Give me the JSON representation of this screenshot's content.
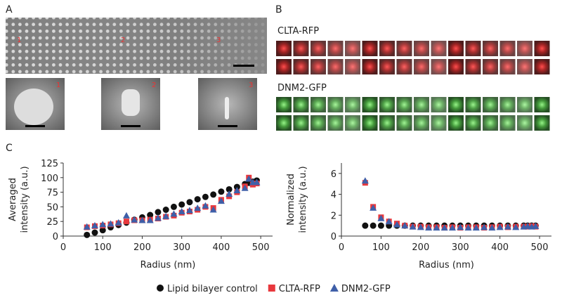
{
  "panels": {
    "a": {
      "label": "A",
      "markers": [
        "1",
        "2",
        "3"
      ],
      "inset_labels": [
        "1",
        "2",
        "3"
      ]
    },
    "b": {
      "label": "B",
      "rows": [
        "CLTA-RFP",
        "DNM2-GFP"
      ]
    },
    "c": {
      "label": "C"
    }
  },
  "chart_data": [
    {
      "type": "scatter",
      "x": [
        60,
        80,
        100,
        120,
        140,
        160,
        180,
        200,
        220,
        240,
        260,
        280,
        300,
        320,
        340,
        360,
        380,
        400,
        420,
        440,
        460,
        470,
        480,
        490
      ],
      "series": [
        {
          "name": "Lipid bilayer control",
          "color": "#111111",
          "marker": "circle",
          "values": [
            2,
            6,
            10,
            15,
            19,
            23,
            28,
            32,
            36,
            41,
            45,
            50,
            54,
            58,
            63,
            67,
            71,
            76,
            80,
            84,
            89,
            91,
            93,
            95
          ]
        },
        {
          "name": "CLTA-RFP",
          "color": "#e8383d",
          "marker": "square",
          "values": [
            15,
            17,
            18,
            20,
            22,
            25,
            27,
            27,
            28,
            30,
            33,
            35,
            40,
            42,
            45,
            50,
            48,
            62,
            68,
            75,
            85,
            100,
            88,
            90
          ]
        },
        {
          "name": "DNM2-GFP",
          "color": "#3f5fa8",
          "marker": "triangle",
          "values": [
            16,
            18,
            20,
            21,
            23,
            35,
            28,
            27,
            27,
            31,
            34,
            38,
            42,
            44,
            48,
            52,
            45,
            60,
            72,
            78,
            82,
            98,
            92,
            92
          ]
        }
      ],
      "xlim": [
        0,
        530
      ],
      "ylim": [
        0,
        125
      ],
      "xticks": [
        0,
        100,
        200,
        300,
        400,
        500
      ],
      "yticks": [
        0,
        25,
        50,
        75,
        100,
        125
      ],
      "xlabel": "Radius (nm)",
      "ylabel": [
        "Averaged",
        "intensity (a.u.)"
      ]
    },
    {
      "type": "scatter",
      "x": [
        60,
        80,
        100,
        120,
        140,
        160,
        180,
        200,
        220,
        240,
        260,
        280,
        300,
        320,
        340,
        360,
        380,
        400,
        420,
        440,
        460,
        470,
        480,
        490
      ],
      "series": [
        {
          "color": "#111111",
          "marker": "circle",
          "values": [
            1,
            1,
            1,
            1,
            1,
            1,
            1,
            1,
            1,
            1,
            1,
            1,
            1,
            1,
            1,
            1,
            1,
            1,
            1,
            1,
            1,
            1,
            1,
            1
          ]
        },
        {
          "color": "#e8383d",
          "marker": "square",
          "values": [
            5.1,
            2.8,
            1.8,
            1.4,
            1.2,
            1.0,
            0.9,
            0.9,
            0.85,
            0.85,
            0.8,
            0.85,
            0.8,
            0.85,
            0.85,
            0.8,
            0.85,
            0.9,
            0.85,
            0.9,
            0.9,
            0.9,
            0.95,
            0.9
          ]
        },
        {
          "color": "#3f5fa8",
          "marker": "triangle",
          "values": [
            5.3,
            2.7,
            1.7,
            1.4,
            1.1,
            1.0,
            0.9,
            0.85,
            0.8,
            0.8,
            0.8,
            0.8,
            0.85,
            0.8,
            0.8,
            0.85,
            0.8,
            0.85,
            0.9,
            0.85,
            0.9,
            0.95,
            0.9,
            0.95
          ]
        }
      ],
      "xlim": [
        0,
        530
      ],
      "ylim": [
        0,
        7
      ],
      "xticks": [
        0,
        100,
        200,
        300,
        400,
        500
      ],
      "yticks": [
        0,
        2,
        4,
        6
      ],
      "xlabel": "Radius (nm)",
      "ylabel": [
        "Normalized",
        "intensity (a.u.)"
      ]
    }
  ]
}
